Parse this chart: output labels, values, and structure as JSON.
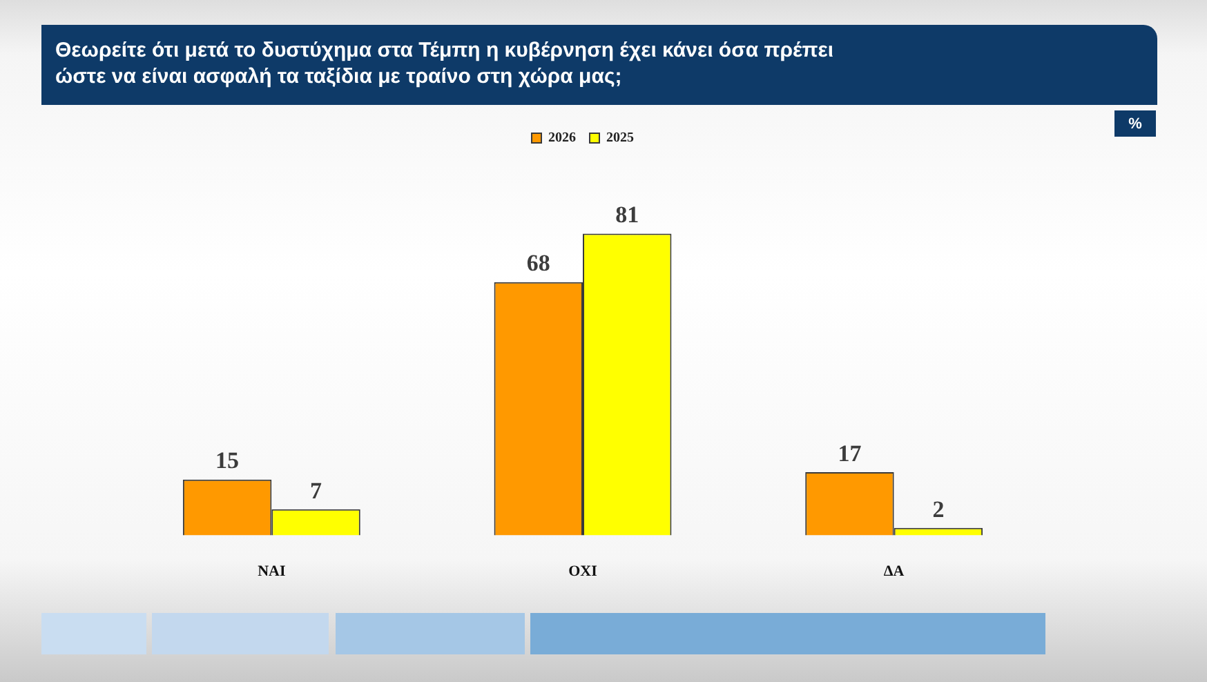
{
  "chart_data": {
    "type": "bar",
    "title": "Θεωρείτε ότι μετά το δυστύχημα στα Τέμπη η κυβέρνηση έχει κάνει όσα πρέπει ώστε να είναι ασφαλή τα ταξίδια με τραίνο στη χώρα μας;",
    "annotations": [
      "%"
    ],
    "categories": [
      "ΝΑΙ",
      "ΟΧΙ",
      "ΔΑ"
    ],
    "series": [
      {
        "name": "2026",
        "color": "#ff9900",
        "values": [
          15,
          68,
          17
        ]
      },
      {
        "name": "2025",
        "color": "#ffff00",
        "values": [
          7,
          81,
          2
        ]
      }
    ],
    "data_labels": true,
    "legend": "top"
  }
}
